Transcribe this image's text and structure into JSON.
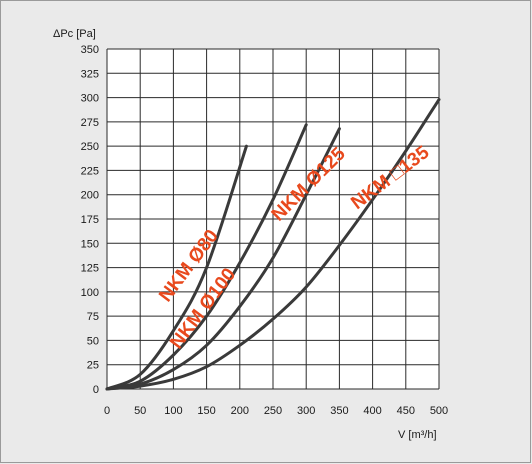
{
  "chart_data": {
    "type": "line",
    "ylabel_prefix": "ΔPc [Pa]",
    "xlabel": "V [m³/h]",
    "xlim": [
      0,
      500
    ],
    "ylim": [
      0,
      350
    ],
    "xticks": [
      0,
      50,
      100,
      150,
      200,
      250,
      300,
      350,
      400,
      450,
      500
    ],
    "yticks": [
      0,
      25,
      50,
      75,
      100,
      125,
      150,
      175,
      200,
      225,
      250,
      275,
      300,
      325,
      350
    ],
    "grid": true,
    "line_color": "#3a3a3a",
    "label_color": "#e8491d",
    "series": [
      {
        "name": "NKM Ø80",
        "x": [
          0,
          50,
          100,
          150,
          210
        ],
        "y": [
          0,
          15,
          60,
          125,
          250
        ]
      },
      {
        "name": "NKM Ø100",
        "x": [
          0,
          50,
          100,
          150,
          200,
          250,
          300
        ],
        "y": [
          0,
          8,
          35,
          75,
          130,
          195,
          272
        ]
      },
      {
        "name": "NKM Ø125",
        "x": [
          0,
          50,
          100,
          150,
          200,
          250,
          300,
          350
        ],
        "y": [
          0,
          5,
          20,
          45,
          85,
          135,
          200,
          268
        ]
      },
      {
        "name": "NKM □135",
        "x": [
          0,
          50,
          100,
          150,
          200,
          250,
          300,
          350,
          400,
          450,
          500
        ],
        "y": [
          0,
          3,
          10,
          23,
          45,
          72,
          105,
          148,
          195,
          245,
          298
        ]
      }
    ]
  }
}
